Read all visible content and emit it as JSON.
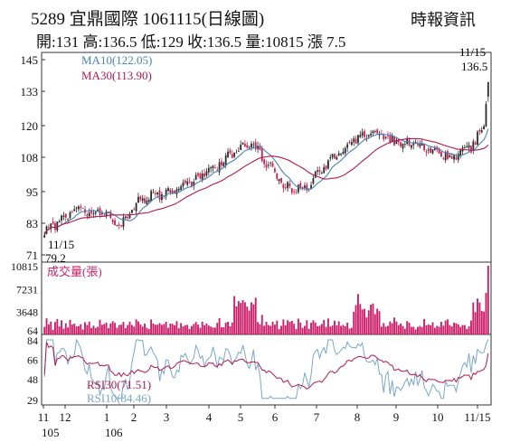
{
  "header": {
    "title": "5289 宜鼎國際 1061115(日線圖)",
    "source": "時報資訊",
    "stats": "開:131 高:136.5 低:129 收:136.5 量:10815 漲 7.5"
  },
  "colors": {
    "candle_up": "#2a2a2a",
    "candle_down": "#cc1f4f",
    "ma10": "#4a82b4",
    "ma30": "#b0194f",
    "volume": "#cc1f6a",
    "rsi30": "#b0194f",
    "rsi10": "#7aa6cc",
    "frame": "#333333"
  },
  "chart_data": [
    {
      "type": "candlestick",
      "panel": "price",
      "y_ticks": [
        "145",
        "133",
        "120",
        "108",
        "95",
        "83",
        "71"
      ],
      "ylim": [
        71,
        145
      ],
      "series": [
        {
          "name": "MA10",
          "legend": "MA10(122.05)"
        },
        {
          "name": "MA30",
          "legend": "MA30(113.90)"
        }
      ],
      "annotations": {
        "low_date": "11/15",
        "low_value": "79.2",
        "high_date": "11/15",
        "high_value": "136.5"
      },
      "keypoints": [
        {
          "d": 0,
          "p": 80
        },
        {
          "d": 15,
          "p": 88
        },
        {
          "d": 28,
          "p": 87
        },
        {
          "d": 36,
          "p": 83
        },
        {
          "d": 45,
          "p": 92
        },
        {
          "d": 60,
          "p": 95
        },
        {
          "d": 78,
          "p": 103
        },
        {
          "d": 92,
          "p": 112
        },
        {
          "d": 98,
          "p": 113
        },
        {
          "d": 112,
          "p": 97
        },
        {
          "d": 122,
          "p": 96
        },
        {
          "d": 135,
          "p": 108
        },
        {
          "d": 146,
          "p": 115
        },
        {
          "d": 155,
          "p": 118
        },
        {
          "d": 162,
          "p": 114
        },
        {
          "d": 175,
          "p": 113
        },
        {
          "d": 190,
          "p": 108
        },
        {
          "d": 200,
          "p": 112
        },
        {
          "d": 206,
          "p": 120
        },
        {
          "d": 208,
          "p": 136.5
        }
      ]
    },
    {
      "type": "bar",
      "panel": "volume",
      "label": "成交量(張)",
      "y_ticks": [
        "10815",
        "7231",
        "3648",
        "64"
      ],
      "ylim": [
        64,
        10815
      ],
      "last_value": 10815
    },
    {
      "type": "line",
      "panel": "rsi",
      "y_ticks": [
        "84",
        "66",
        "48",
        "29"
      ],
      "ylim": [
        29,
        84
      ],
      "series": [
        {
          "name": "RSI30",
          "legend": "RSI30(71.51)"
        },
        {
          "name": "RSI10",
          "legend": "RSI10(84.46)"
        }
      ]
    }
  ],
  "x_axis": {
    "ticks": [
      {
        "label": "11",
        "sub": "105"
      },
      {
        "label": "12",
        "sub": ""
      },
      {
        "label": "1",
        "sub": "106"
      },
      {
        "label": "2",
        "sub": ""
      },
      {
        "label": "3",
        "sub": ""
      },
      {
        "label": "4",
        "sub": ""
      },
      {
        "label": "5",
        "sub": ""
      },
      {
        "label": "6",
        "sub": ""
      },
      {
        "label": "7",
        "sub": ""
      },
      {
        "label": "8",
        "sub": ""
      },
      {
        "label": "9",
        "sub": ""
      },
      {
        "label": "10",
        "sub": ""
      },
      {
        "label": "11/15",
        "sub": ""
      }
    ]
  }
}
